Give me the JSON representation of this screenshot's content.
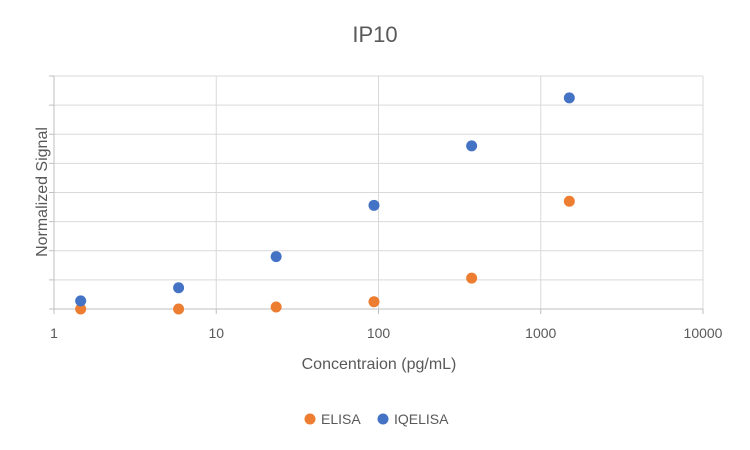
{
  "chart_data": {
    "type": "scatter",
    "title": "IP10",
    "xlabel": "Concentraion (pg/mL)",
    "ylabel": "Normalized Signal",
    "x_scale": "log",
    "xlim": [
      1,
      10000
    ],
    "x_ticks": [
      "1",
      "10",
      "100",
      "1000",
      "10000"
    ],
    "ylim": [
      0,
      8
    ],
    "y_tick_labels_shown": false,
    "grid": true,
    "legend_position": "bottom",
    "series": [
      {
        "name": "ELISA",
        "color": "#ED7D31",
        "points": [
          {
            "x": 1.46,
            "y": 0.0
          },
          {
            "x": 5.86,
            "y": 0.0
          },
          {
            "x": 23.4,
            "y": 0.07
          },
          {
            "x": 93.8,
            "y": 0.25
          },
          {
            "x": 375,
            "y": 1.06
          },
          {
            "x": 1500,
            "y": 3.7
          }
        ]
      },
      {
        "name": "IQELISA",
        "color": "#4472C4",
        "points": [
          {
            "x": 1.46,
            "y": 0.28
          },
          {
            "x": 5.86,
            "y": 0.73
          },
          {
            "x": 23.4,
            "y": 1.8
          },
          {
            "x": 93.8,
            "y": 3.56
          },
          {
            "x": 375,
            "y": 5.6
          },
          {
            "x": 1500,
            "y": 7.25
          }
        ]
      }
    ]
  }
}
